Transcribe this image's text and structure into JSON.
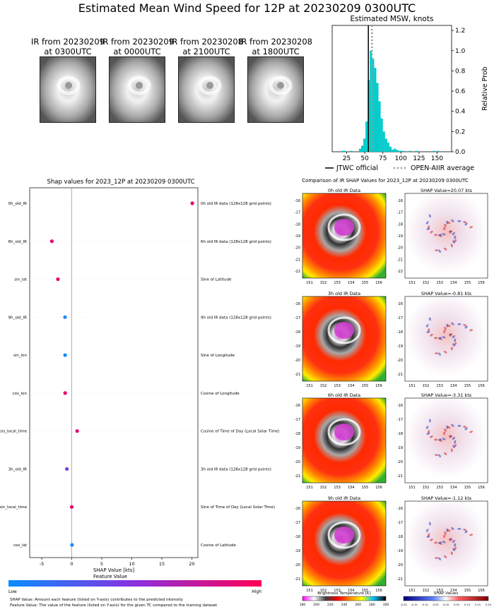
{
  "page": {
    "title": "Estimated Mean Wind Speed for 12P at 20230209 0300UTC"
  },
  "ir_thumbnails": [
    {
      "line1": "IR from 20230209",
      "line2": "at 0300UTC"
    },
    {
      "line1": "IR from 20230209",
      "line2": "at 0000UTC"
    },
    {
      "line1": "IR from 20230208",
      "line2": "at 2100UTC"
    },
    {
      "line1": "IR from 20230208",
      "line2": "at 1800UTC"
    }
  ],
  "msw_hist": {
    "title": "Estimated MSW, knots",
    "ylabel": "Relative Prob",
    "x_ticks": [
      "25",
      "50",
      "75",
      "100",
      "125",
      "150"
    ],
    "y_ticks": [
      "0.0",
      "0.2",
      "0.4",
      "0.6",
      "0.8",
      "1.0",
      "1.2"
    ],
    "legend": {
      "jtwc": "JTWC official",
      "openair": "OPEN-AIIR average"
    },
    "bar_color": "#00cccc"
  },
  "chart_data": [
    {
      "type": "bar",
      "title": "Estimated MSW, knots",
      "ylabel": "Relative Prob",
      "xlim": [
        5,
        170
      ],
      "ylim": [
        0,
        1.25
      ],
      "bin_width": 3,
      "bins_start": [
        18,
        21,
        24,
        27,
        30,
        33,
        36,
        39,
        42,
        45,
        48,
        51,
        54,
        57,
        60,
        63,
        66,
        69,
        72,
        75,
        78,
        81,
        84,
        87,
        90,
        93,
        96,
        99,
        102,
        105,
        108,
        111,
        114,
        117,
        120,
        123,
        126,
        129,
        132,
        135,
        138,
        141,
        144,
        147,
        150
      ],
      "values": [
        0.01,
        0.01,
        0.0,
        0.0,
        0.01,
        0.0,
        0.0,
        0.0,
        0.03,
        0.06,
        0.13,
        0.3,
        0.71,
        1.0,
        0.92,
        0.83,
        0.68,
        0.5,
        0.33,
        0.2,
        0.13,
        0.09,
        0.05,
        0.02,
        0.03,
        0.02,
        0.01,
        0.01,
        0.01,
        0.0,
        0.0,
        0.01,
        0.0,
        0.0,
        0.01,
        0.0,
        0.0,
        0.0,
        0.0,
        0.0,
        0.0,
        0.0,
        0.01,
        0.0,
        0.01
      ],
      "jtwc_official": 55,
      "open_aiir_average": 60
    },
    {
      "type": "scatter",
      "title": "Shap values for 2023_12P at 20230209 0300UTC",
      "xlabel": "SHAP Value [kts]",
      "x_ticks": [
        -5,
        0,
        5,
        10,
        15,
        20
      ],
      "xlim": [
        -7,
        21
      ],
      "features": [
        "0h_old_IR",
        "6h_old_IR",
        "sin_lat",
        "9h_old_IR",
        "sin_lon",
        "cos_lon",
        "cos_local_time",
        "3h_old_IR",
        "sin_local_time",
        "cos_lat"
      ],
      "descriptions": [
        "0h old IR data (128x128 grid points)",
        "6h old IR data (128x128 grid points)",
        "Sine of Latitude",
        "9h old IR data (128x128 grid points)",
        "Sine of Longitude",
        "Cosine of Longitude",
        "Cosine of Time of Day (Local Solar Time)",
        "3h old IR data (128x128 grid points)",
        "Sine of Time of Day (Local Solar Time)",
        "Cosine of Latitude"
      ],
      "values": [
        20.07,
        -3.31,
        -2.3,
        -1.12,
        -1.1,
        -1.1,
        0.9,
        -0.81,
        0.0,
        0.05
      ],
      "colors": [
        "#e8006e",
        "#e8006e",
        "#e8006e",
        "#1e88ff",
        "#1e88ff",
        "#e8006e",
        "#e8006e",
        "#7a3fd8",
        "#e8006e",
        "#1e88ff"
      ]
    }
  ],
  "shap": {
    "title": "Shap values for 2023_12P at 20230209 0300UTC",
    "xlabel": "SHAP Value [kts]",
    "colorbar_title": "Feature Value",
    "low": "Low",
    "high": "High",
    "footnote1": "SHAP Value: Amount each feature (listed on Y-axis) contributes to the predicted intensity",
    "footnote2": "Feature Value: The value of the feature (listed on Y-axis) for the given TC compared to the training dataset"
  },
  "comparison": {
    "title": "Comparison of IR SHAP Values for 2023_12P at 20230209 0300UTC",
    "rows": [
      {
        "ir_title": "0h old IR Data",
        "shap_title": "SHAP Value=20.07 kts"
      },
      {
        "ir_title": "3h old IR Data",
        "shap_title": "SHAP Value=-0.81 kts"
      },
      {
        "ir_title": "6h old IR Data",
        "shap_title": "SHAP Value=-3.31 kts"
      },
      {
        "ir_title": "9h old IR Data",
        "shap_title": "SHAP Value=-1.12 kts"
      }
    ],
    "lat_ticks_a": [
      "-16",
      "-17",
      "-18",
      "-19",
      "-20",
      "-21",
      "-22"
    ],
    "lat_ticks_b": [
      "-16",
      "-17",
      "-18",
      "-19",
      "-20",
      "-21"
    ],
    "lon_ticks": [
      "151",
      "152",
      "153",
      "154",
      "155",
      "156"
    ],
    "bt_title": "Brightness Temperature [K]",
    "bt_ticks": [
      "180",
      "200",
      "220",
      "240",
      "260",
      "280",
      "300"
    ],
    "sv_title": "SHAP Values",
    "sv_ticks": [
      "-0.20",
      "-0.15",
      "-0.10",
      "-0.05",
      "0.00",
      "0.05",
      "0.10",
      "0.15",
      "0.20"
    ]
  }
}
